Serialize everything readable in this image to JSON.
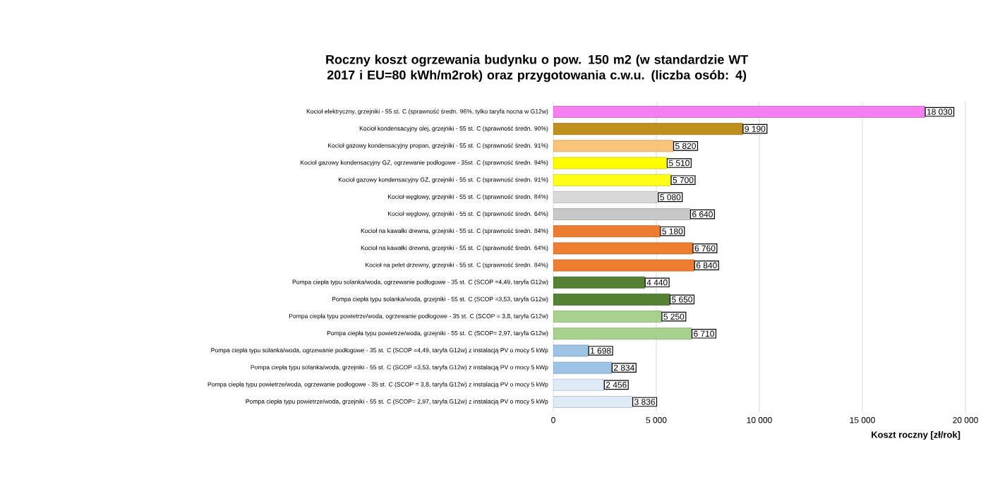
{
  "chart_data": {
    "type": "bar",
    "orientation": "horizontal",
    "title": "Roczny koszt ogrzewania budynku  o pow. 150 m2 (w standardzie WT 2017 i EU=80 kWh/m2rok) oraz przygotowania c.w.u. (liczba osób: 4)",
    "xlabel": "Koszt roczny [zł/rok]",
    "categories": [
      "Kocioł  elektryczny,  grzejniki - 55 st. C  (sprawność średn. 96%, tylko taryfa nocna w G12w)",
      "Kocioł  kondensacyjny olej,  grzejniki - 55 st. C  (sprawność średn. 90%)",
      "Kocioł gazowy kondensacyjny propan, grzejniki - 55 st. C  (sprawność średn. 91%)",
      "Kocioł gazowy kondensacyjny GZ, ogrzewanie podłogowe - 35st. C  (sprawność średn. 94%)",
      "Kocioł gazowy kondensacyjny GZ, grzejniki - 55 st. C  (sprawność średn. 91%)",
      "Kocioł węglowy,  grzejniki - 55 st. C  (sprawność średn. 84%)",
      "Kocioł węglowy,  grzejniki - 55 st. C  (sprawność średn. 64%)",
      "Kocioł na kawałki drewna, grzejniki - 55 st. C (sprawność średn. 84%)",
      "Kocioł na kawałki drewna, grzejniki - 55 st. C  (sprawność średn. 64%)",
      "Kocioł na pelet drzewny, grzejniki - 55 st. C (sprawność średn. 84%)",
      "Pompa ciepła typu solanka/woda, ogrzewanie podłogowe - 35 st. C  (SCOP =4,49, taryfa G12w)",
      "Pompa ciepła typu solanka/woda, grzejniki - 55 st. C (SCOP =3,53, taryfa G12w)",
      "Pompa ciepła typu powietrze/woda, ogrzewanie podłogowe - 35 st. C  (SCOP = 3,8, taryfa G12w)",
      "Pompa ciepła typu powietrze/woda, grzejniki - 55 st. C (SCOP= 2,97, taryfa G12w)",
      "Pompa ciepła typu solanka/woda, ogrzewanie podłogowe - 35 st. C  (SCOP =4,49, taryfa G12w) z instalacją PV o mocy 5 kWp",
      "Pompa ciepła typu solanka/woda, grzejniki - 55 st. C (SCOP =3,53, taryfa G12w) z instalacją PV o mocy 5 kWp",
      "Pompa ciepła typu powietrze/woda, ogrzewanie podłogowe - 35 st. C (SCOP = 3,8, taryfa G12w) z instalacją PV o mocy 5 kWp",
      "Pompa ciepła typu powietrze/woda, grzejniki - 55 st. C (SCOP= 2,97, taryfa G12w) z instalacją PV o mocy 5 kWp"
    ],
    "values": [
      18030,
      9190,
      5820,
      5510,
      5700,
      5080,
      6640,
      5180,
      6760,
      6840,
      4440,
      5650,
      5250,
      6710,
      1698,
      2834,
      2456,
      3836
    ],
    "value_labels": [
      "18 030",
      "9 190",
      "5 820",
      "5 510",
      "5 700",
      "5 080",
      "6 640",
      "5 180",
      "6 760",
      "6 840",
      "4 440",
      "5 650",
      "5 250",
      "6 710",
      "1 698",
      "2 834",
      "2 456",
      "3 836"
    ],
    "colors": [
      "#f57ff0",
      "#bf8f1c",
      "#f9c47a",
      "#ffff00",
      "#ffff1a",
      "#d9d9d9",
      "#c8c8c8",
      "#ed7d31",
      "#ed7d31",
      "#ed7d31",
      "#548235",
      "#548235",
      "#a9d18e",
      "#a9d18e",
      "#9dc3e6",
      "#9dc3e6",
      "#deebf7",
      "#deebf7"
    ],
    "xlim": [
      0,
      20000
    ],
    "xticks": [
      0,
      {
        "value": 5000,
        "label": "5 000"
      },
      {
        "value": 10000,
        "label": "10 000"
      },
      {
        "value": 15000,
        "label": "15 000"
      },
      {
        "value": 20000,
        "label": "20 000"
      }
    ],
    "grid": "x"
  }
}
